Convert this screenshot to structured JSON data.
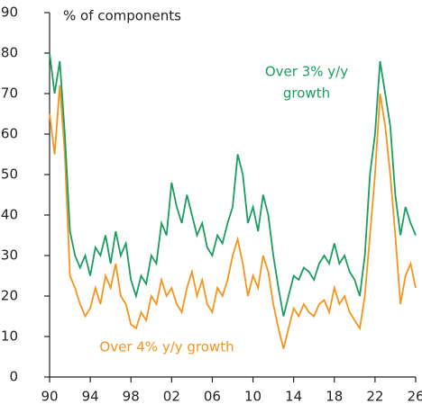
{
  "chart_data": {
    "type": "line",
    "title": "% of components",
    "annotations": [
      {
        "lines": [
          "Over 3% y/y",
          "growth"
        ],
        "color": "#1a9e5f"
      },
      {
        "lines": [
          "Over 4% y/y growth"
        ],
        "color": "#f7941d"
      }
    ],
    "x": [
      1990,
      1990.5,
      1991,
      1991.5,
      1992,
      1992.5,
      1993,
      1993.5,
      1994,
      1994.5,
      1995,
      1995.5,
      1996,
      1996.5,
      1997,
      1997.5,
      1998,
      1998.5,
      1999,
      1999.5,
      2000,
      2000.5,
      2001,
      2001.5,
      2002,
      2002.5,
      2003,
      2003.5,
      2004,
      2004.5,
      2005,
      2005.5,
      2006,
      2006.5,
      2007,
      2007.5,
      2008,
      2008.5,
      2009,
      2009.5,
      2010,
      2010.5,
      2011,
      2011.5,
      2012,
      2012.5,
      2013,
      2013.5,
      2014,
      2014.5,
      2015,
      2015.5,
      2016,
      2016.5,
      2017,
      2017.5,
      2018,
      2018.5,
      2019,
      2019.5,
      2020,
      2020.5,
      2021,
      2021.5,
      2022,
      2022.5,
      2023,
      2023.5,
      2024,
      2024.5,
      2025,
      2025.5,
      2026
    ],
    "series": [
      {
        "name": "Over 3% y/y growth",
        "color": "#1a9e5f",
        "values": [
          80,
          70,
          78,
          60,
          36,
          30,
          27,
          30,
          25,
          32,
          30,
          35,
          28,
          36,
          30,
          33,
          24,
          20,
          25,
          23,
          30,
          28,
          38,
          35,
          48,
          42,
          38,
          45,
          40,
          35,
          38,
          32,
          30,
          35,
          33,
          38,
          42,
          55,
          50,
          38,
          42,
          36,
          45,
          40,
          30,
          22,
          15,
          20,
          25,
          24,
          27,
          26,
          24,
          28,
          30,
          28,
          33,
          28,
          30,
          26,
          24,
          20,
          30,
          50,
          60,
          78,
          70,
          62,
          45,
          35,
          42,
          38,
          35
        ]
      },
      {
        "name": "Over 4% y/y growth",
        "color": "#f7941d",
        "values": [
          65,
          55,
          72,
          55,
          25,
          22,
          18,
          15,
          17,
          22,
          18,
          25,
          22,
          28,
          20,
          18,
          13,
          12,
          16,
          14,
          20,
          18,
          24,
          20,
          22,
          18,
          16,
          22,
          26,
          20,
          24,
          18,
          16,
          22,
          20,
          24,
          30,
          34,
          28,
          20,
          25,
          22,
          30,
          26,
          18,
          12,
          7,
          12,
          17,
          15,
          18,
          16,
          15,
          18,
          19,
          16,
          22,
          18,
          20,
          16,
          14,
          12,
          20,
          35,
          50,
          70,
          62,
          50,
          35,
          18,
          25,
          28,
          22
        ]
      }
    ],
    "xlim": [
      1990,
      2026
    ],
    "xticks": [
      {
        "value": 1990,
        "label": "90"
      },
      {
        "value": 1994,
        "label": "94"
      },
      {
        "value": 1998,
        "label": "98"
      },
      {
        "value": 2002,
        "label": "02"
      },
      {
        "value": 2006,
        "label": "06"
      },
      {
        "value": 2010,
        "label": "10"
      },
      {
        "value": 2014,
        "label": "14"
      },
      {
        "value": 2018,
        "label": "18"
      },
      {
        "value": 2022,
        "label": "22"
      },
      {
        "value": 2026,
        "label": "26"
      }
    ],
    "ylim": [
      0,
      90
    ],
    "yticks": [
      0,
      10,
      20,
      30,
      40,
      50,
      60,
      70,
      80,
      90
    ]
  }
}
